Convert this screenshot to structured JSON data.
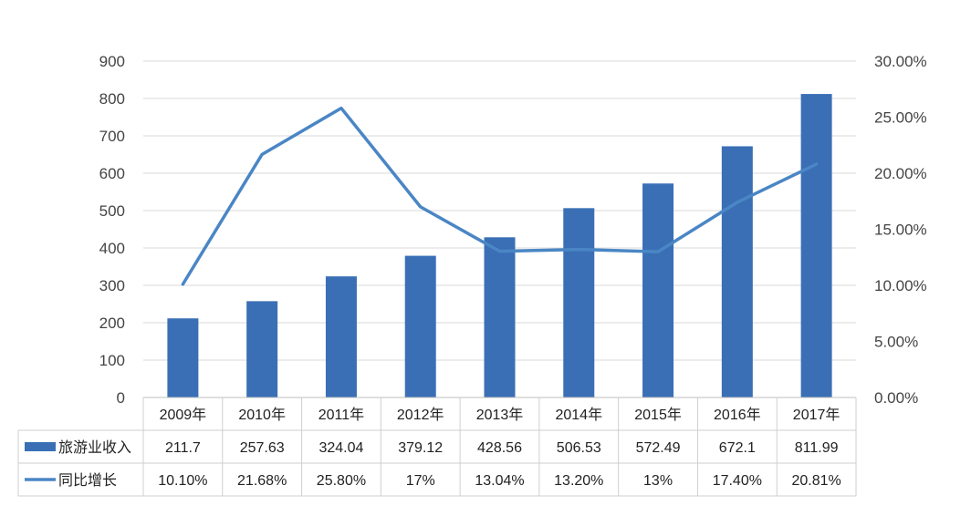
{
  "chart_data": {
    "type": "bar",
    "categories": [
      "2009年",
      "2010年",
      "2011年",
      "2012年",
      "2013年",
      "2014年",
      "2015年",
      "2016年",
      "2017年"
    ],
    "series": [
      {
        "name": "旅游业收入",
        "type": "bar",
        "axis": "left",
        "values": [
          211.7,
          257.63,
          324.04,
          379.12,
          428.56,
          506.53,
          572.49,
          672.1,
          811.99
        ],
        "labels": [
          "211.7",
          "257.63",
          "324.04",
          "379.12",
          "428.56",
          "506.53",
          "572.49",
          "672.1",
          "811.99"
        ],
        "color": "#3a6fb5"
      },
      {
        "name": "同比增长",
        "type": "line",
        "axis": "right",
        "values": [
          10.1,
          21.68,
          25.8,
          17,
          13.04,
          13.2,
          13,
          17.4,
          20.81
        ],
        "labels": [
          "10.10%",
          "21.68%",
          "25.80%",
          "17%",
          "13.04%",
          "13.20%",
          "13%",
          "17.40%",
          "20.81%"
        ],
        "color": "#4a86c5"
      }
    ],
    "y_left": {
      "ylim": [
        0,
        900
      ],
      "ticks": [
        "0",
        "100",
        "200",
        "300",
        "400",
        "500",
        "600",
        "700",
        "800",
        "900"
      ]
    },
    "y_right": {
      "ylim": [
        0,
        30
      ],
      "ticks": [
        "0.00%",
        "5.00%",
        "10.00%",
        "15.00%",
        "20.00%",
        "25.00%",
        "30.00%"
      ]
    },
    "grid": true,
    "legend": "data-table-below"
  }
}
